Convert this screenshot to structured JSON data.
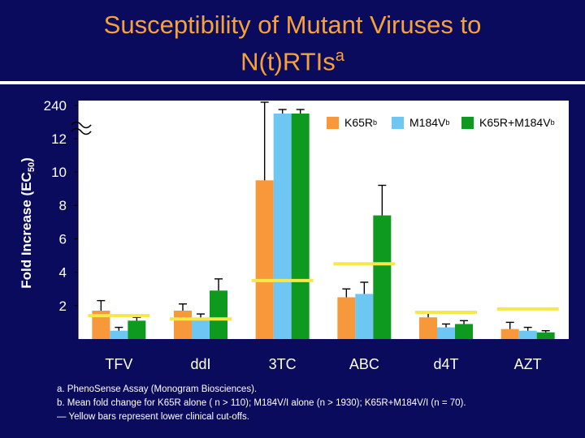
{
  "slide": {
    "title_line1": "Susceptibility of Mutant Viruses to",
    "title_line2": "N(t)RTIs",
    "title_sup": "a",
    "footnote_a": "a.  PhenoSense Assay (Monogram Biosciences).",
    "footnote_b": "b.  Mean fold change for K65R alone ( n > 110); M184V/I alone (n > 1930); K65R+M184V/I (n = 70).",
    "footnote_c": "— Yellow bars represent lower clinical cut-offs."
  },
  "colors": {
    "background": "#0b0b5e",
    "title": "#f7a13a",
    "K65R": "#f7993a",
    "M184V": "#6ec6f2",
    "K65R_M184V": "#0e9a1e",
    "cutoff": "#f5e84a"
  },
  "chart_data": {
    "type": "bar",
    "title": "",
    "xlabel": "",
    "ylabel": "Fold Increase (EC50)",
    "ylabel_main": "Fold Increase (EC",
    "ylabel_sub": "50",
    "ylabel_end": ")",
    "yticks": [
      "2",
      "4",
      "6",
      "8",
      "10",
      "12",
      "240"
    ],
    "ylim": [
      0,
      12
    ],
    "axis_break": "between 12 and 240",
    "legend_position": "top-right",
    "categories": [
      "TFV",
      "ddI",
      "3TC",
      "ABC",
      "d4T",
      "AZT"
    ],
    "series": [
      {
        "name": "K65R",
        "sup": "b",
        "values": [
          1.7,
          1.7,
          9.5,
          2.5,
          1.3,
          0.6
        ],
        "errors": [
          0.6,
          0.4,
          2.6,
          0.5,
          0.3,
          0.4
        ]
      },
      {
        "name": "M184V",
        "sup": "b",
        "values": [
          0.5,
          1.2,
          240,
          2.7,
          0.7,
          0.5
        ],
        "errors": [
          0.2,
          0.3,
          5,
          0.7,
          0.2,
          0.2
        ]
      },
      {
        "name": "K65R+M184V",
        "sup": "b",
        "values": [
          1.1,
          2.9,
          240,
          7.4,
          0.9,
          0.4
        ],
        "errors": [
          0.2,
          0.7,
          5,
          1.8,
          0.2,
          0.1
        ]
      }
    ],
    "cutoffs": [
      1.4,
      1.2,
      3.5,
      4.5,
      1.6,
      1.8
    ]
  }
}
